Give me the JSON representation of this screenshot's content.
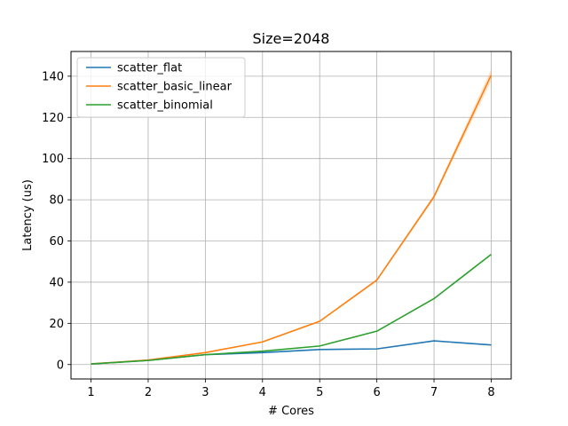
{
  "chart_data": {
    "type": "line",
    "title": "Size=2048",
    "xlabel": "# Cores",
    "ylabel": "Latency (us)",
    "x": [
      1,
      2,
      3,
      4,
      5,
      6,
      7,
      8
    ],
    "xlim": [
      0.65,
      8.35
    ],
    "ylim": [
      -7,
      152
    ],
    "xticks": [
      1,
      2,
      3,
      4,
      5,
      6,
      7,
      8
    ],
    "yticks": [
      0,
      20,
      40,
      60,
      80,
      100,
      120,
      140
    ],
    "grid": true,
    "legend_position": "top-left",
    "series": [
      {
        "name": "scatter_flat",
        "color": "#1f77b4",
        "values": [
          0.3,
          2.0,
          4.8,
          5.8,
          7.3,
          7.6,
          11.5,
          9.5
        ]
      },
      {
        "name": "scatter_basic_linear",
        "color": "#ff7f0e",
        "values": [
          0.3,
          2.2,
          5.8,
          11.0,
          21.0,
          41.0,
          81.5,
          140.5
        ],
        "band": [
          0,
          0,
          0.2,
          0.3,
          0.4,
          0.6,
          1.0,
          3.0
        ]
      },
      {
        "name": "scatter_binomial",
        "color": "#2ca02c",
        "values": [
          0.3,
          2.0,
          4.8,
          6.5,
          9.0,
          16.2,
          32.0,
          53.5
        ]
      }
    ]
  }
}
